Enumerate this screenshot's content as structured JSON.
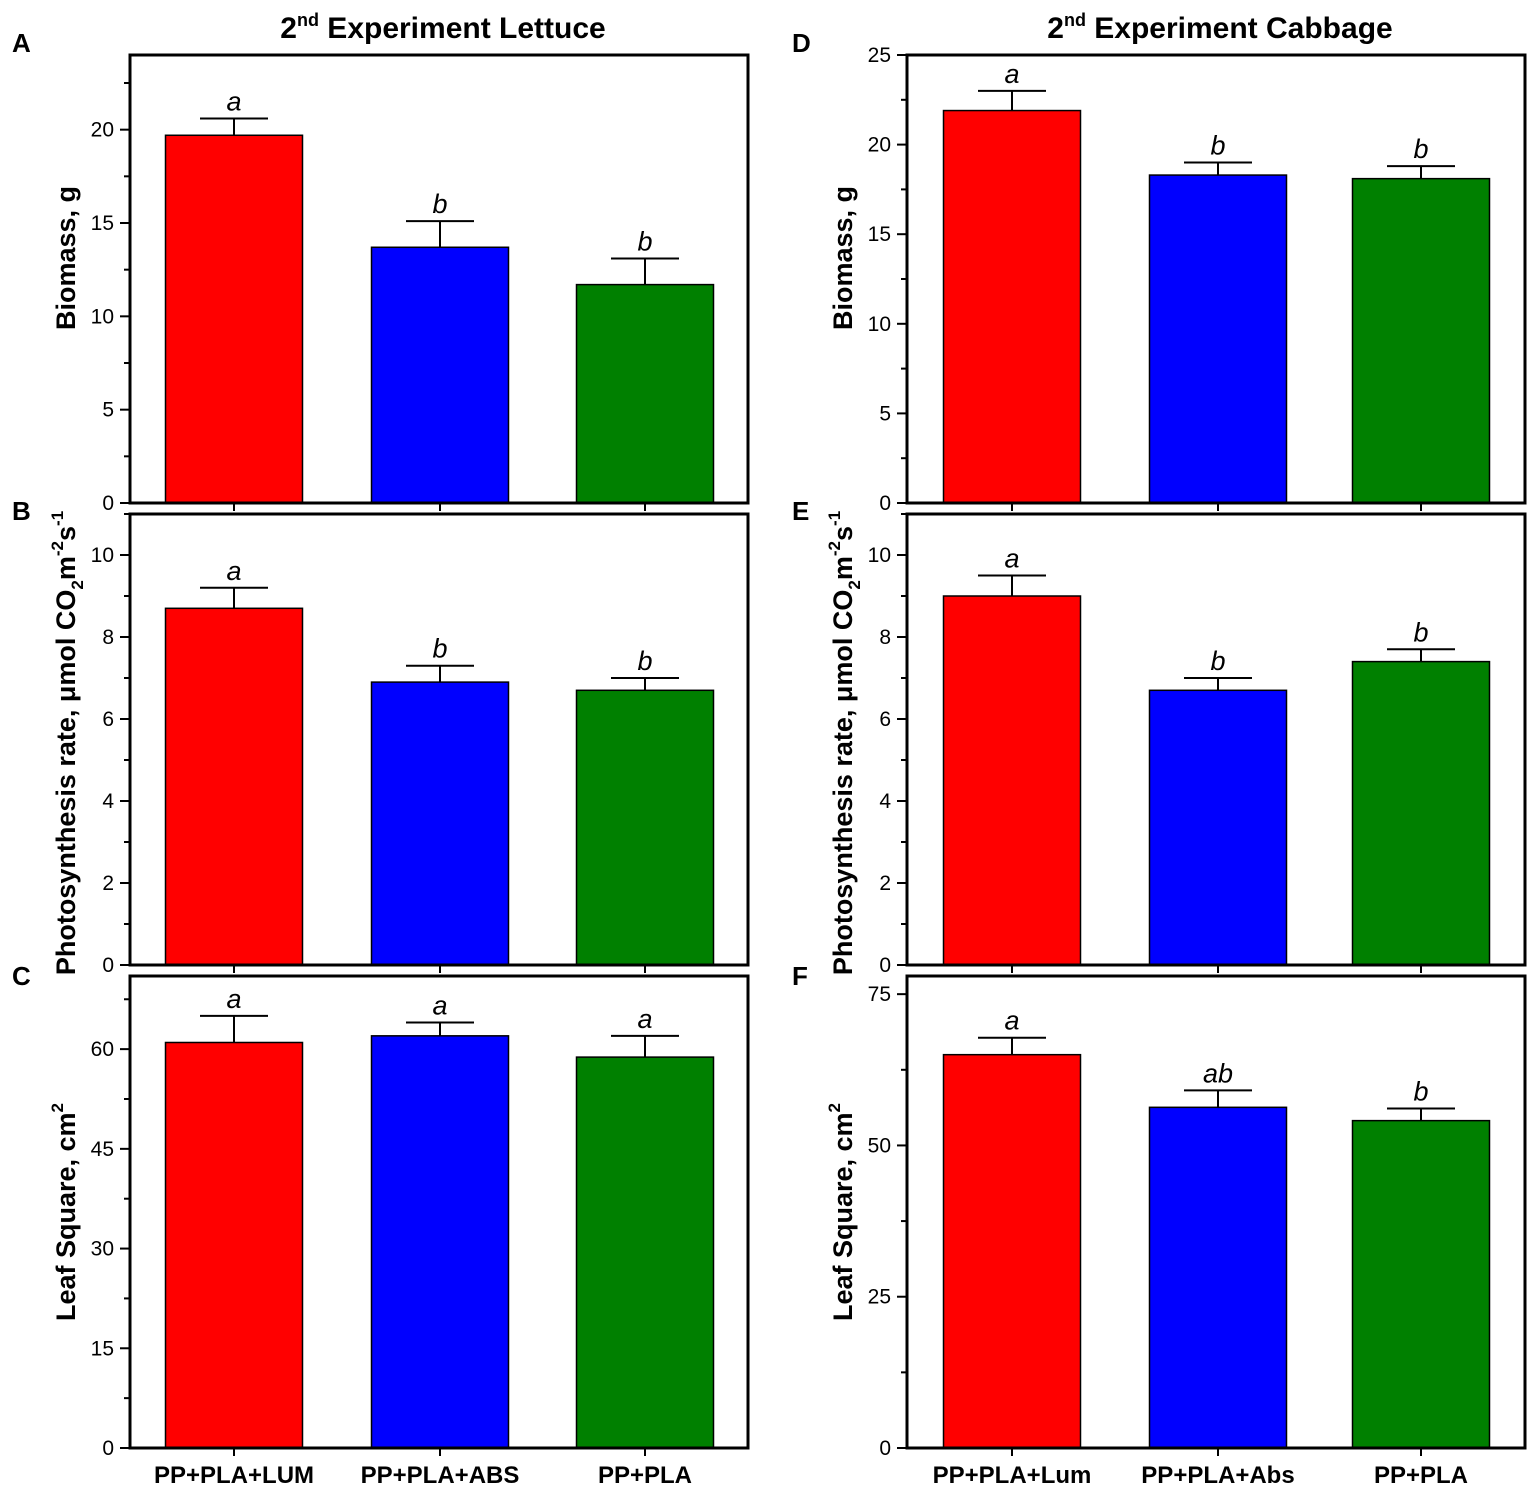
{
  "colors": {
    "red": "#ff0000",
    "blue": "#0000ff",
    "green": "#008000",
    "axis": "#000000"
  },
  "columns": [
    {
      "title_prefix": "2",
      "title_sup": "nd",
      "title_rest": " Experiment Lettuce",
      "categories": [
        "PP+PLA+LUM",
        "PP+PLA+ABS",
        "PP+PLA"
      ]
    },
    {
      "title_prefix": "2",
      "title_sup": "nd",
      "title_rest": " Experiment Cabbage",
      "categories": [
        "PP+PLA+Lum",
        "PP+PLA+Abs",
        "PP+PLA"
      ]
    }
  ],
  "chart_data": [
    {
      "panel": "A",
      "type": "bar",
      "crop": "Lettuce",
      "ylabel": "Biomass, g",
      "ylim": [
        0,
        24
      ],
      "ticks": [
        0,
        5,
        10,
        15,
        20
      ],
      "categories": [
        "PP+PLA+LUM",
        "PP+PLA+ABS",
        "PP+PLA"
      ],
      "values": [
        19.7,
        13.7,
        11.7
      ],
      "errors": [
        0.9,
        1.4,
        1.4
      ],
      "significance": [
        "a",
        "b",
        "b"
      ]
    },
    {
      "panel": "B",
      "type": "bar",
      "crop": "Lettuce",
      "ylabel_main": "Photosynthesis rate, μmol CO",
      "ylabel_sub": "2",
      "ylabel_end": "m",
      "ylabel_sup1": "-2",
      "ylabel_s": "s",
      "ylabel_sup2": "-1",
      "ylim": [
        0,
        11
      ],
      "ticks": [
        0,
        2,
        4,
        6,
        8,
        10
      ],
      "categories": [
        "PP+PLA+LUM",
        "PP+PLA+ABS",
        "PP+PLA"
      ],
      "values": [
        8.7,
        6.9,
        6.7
      ],
      "errors": [
        0.5,
        0.4,
        0.3
      ],
      "significance": [
        "a",
        "b",
        "b"
      ]
    },
    {
      "panel": "C",
      "type": "bar",
      "crop": "Lettuce",
      "ylabel_main": "Leaf Square, cm",
      "ylabel_sup": "2",
      "ylim": [
        0,
        71
      ],
      "ticks": [
        0,
        15,
        30,
        45,
        60
      ],
      "categories": [
        "PP+PLA+LUM",
        "PP+PLA+ABS",
        "PP+PLA"
      ],
      "values": [
        61.0,
        62.0,
        58.8
      ],
      "errors": [
        4.0,
        2.0,
        3.2
      ],
      "significance": [
        "a",
        "a",
        "a"
      ]
    },
    {
      "panel": "D",
      "type": "bar",
      "crop": "Cabbage",
      "ylabel": "Biomass, g",
      "ylim": [
        0,
        25
      ],
      "ticks": [
        0,
        5,
        10,
        15,
        20,
        25
      ],
      "categories": [
        "PP+PLA+Lum",
        "PP+PLA+Abs",
        "PP+PLA"
      ],
      "values": [
        21.9,
        18.3,
        18.1
      ],
      "errors": [
        1.1,
        0.7,
        0.7
      ],
      "significance": [
        "a",
        "b",
        "b"
      ]
    },
    {
      "panel": "E",
      "type": "bar",
      "crop": "Cabbage",
      "ylabel_main": "Photosynthesis rate, μmol CO",
      "ylabel_sub": "2",
      "ylabel_end": "m",
      "ylabel_sup1": "-2",
      "ylabel_s": "s",
      "ylabel_sup2": "-1",
      "ylim": [
        0,
        11
      ],
      "ticks": [
        0,
        2,
        4,
        6,
        8,
        10
      ],
      "categories": [
        "PP+PLA+Lum",
        "PP+PLA+Abs",
        "PP+PLA"
      ],
      "values": [
        9.0,
        6.7,
        7.4
      ],
      "errors": [
        0.5,
        0.3,
        0.3
      ],
      "significance": [
        "a",
        "b",
        "b"
      ]
    },
    {
      "panel": "F",
      "type": "bar",
      "crop": "Cabbage",
      "ylabel_main": "Leaf Square, cm",
      "ylabel_sup": "2",
      "ylim": [
        0,
        78
      ],
      "ticks": [
        0,
        25,
        50,
        75
      ],
      "categories": [
        "PP+PLA+Lum",
        "PP+PLA+Abs",
        "PP+PLA"
      ],
      "values": [
        65.0,
        56.3,
        54.1
      ],
      "errors": [
        2.8,
        2.8,
        2.0
      ],
      "significance": [
        "a",
        "ab",
        "b"
      ]
    }
  ]
}
